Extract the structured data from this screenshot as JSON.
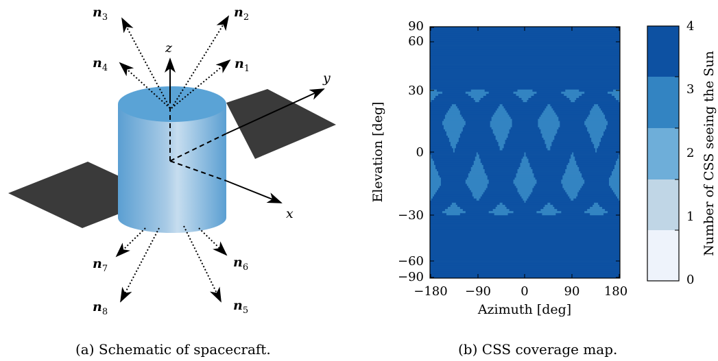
{
  "figure_a": {
    "caption": "(a) Schematic of spacecraft.",
    "axis_labels": {
      "x": "x",
      "y": "y",
      "z": "z"
    },
    "normals": [
      {
        "base": "n",
        "sub": "1"
      },
      {
        "base": "n",
        "sub": "2"
      },
      {
        "base": "n",
        "sub": "3"
      },
      {
        "base": "n",
        "sub": "4"
      },
      {
        "base": "n",
        "sub": "5"
      },
      {
        "base": "n",
        "sub": "6"
      },
      {
        "base": "n",
        "sub": "7"
      },
      {
        "base": "n",
        "sub": "8"
      }
    ],
    "colors": {
      "body_top": "#5ba3d4",
      "body_side_light": "#c5dcee",
      "panel": "#3a3a3a"
    }
  },
  "figure_b": {
    "caption": "(b) CSS coverage map.",
    "xlabel": "Azimuth [deg]",
    "ylabel": "Elevation [deg]",
    "colorbar_label": "Number of CSS seeing the Sun",
    "x_ticks": [
      "−180",
      "−90",
      "0",
      "90",
      "180"
    ],
    "y_ticks": [
      "90",
      "60",
      "30",
      "0",
      "−30",
      "−60",
      "−90"
    ],
    "colorbar_ticks": [
      "0",
      "1",
      "2",
      "3",
      "4"
    ]
  },
  "chart_data": {
    "type": "heatmap",
    "xlim": [
      -180,
      180
    ],
    "ylim": [
      -90,
      90
    ],
    "levels": [
      0,
      1,
      2,
      3,
      4
    ],
    "level_colors": [
      "#eef3fb",
      "#c0d6e6",
      "#6eaed9",
      "#3384c2",
      "#0d51a2"
    ],
    "x_ticks": [
      -180,
      -90,
      0,
      90,
      180
    ],
    "y_ticks": [
      90,
      60,
      30,
      0,
      -30,
      -60,
      -90
    ]
  }
}
